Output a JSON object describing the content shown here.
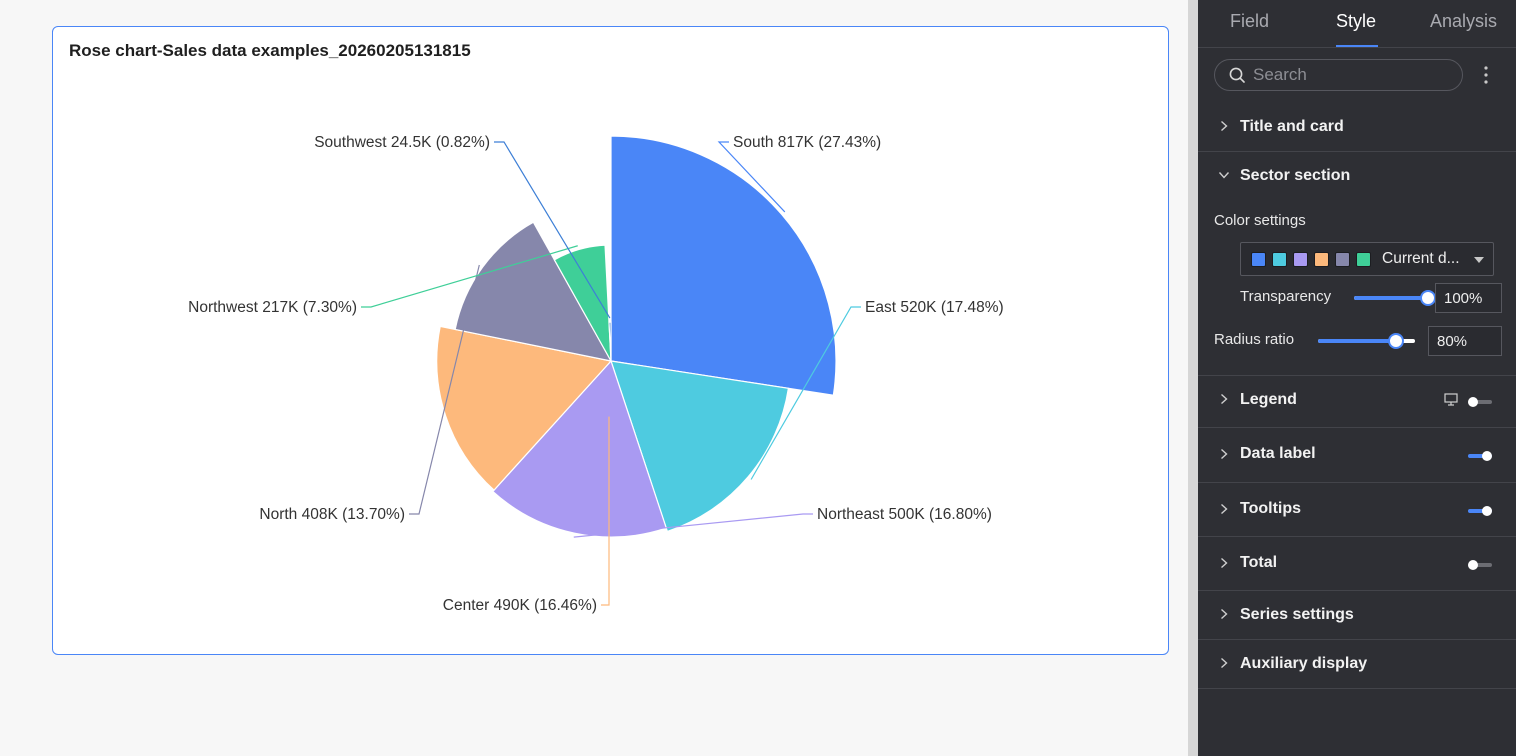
{
  "canvas": {
    "card_title": "Rose chart-Sales data examples_20260205131815"
  },
  "chart_data": {
    "type": "rose",
    "title": "Rose chart-Sales data examples_20260205131815",
    "radius_ratio_percent": 80,
    "slices": [
      {
        "name": "South",
        "value_label": "817K",
        "percent_label": "27.43%",
        "value": 817000,
        "percent": 27.43,
        "color": "#4a86f7"
      },
      {
        "name": "East",
        "value_label": "520K",
        "percent_label": "17.48%",
        "value": 520000,
        "percent": 17.48,
        "color": "#4ecbe0"
      },
      {
        "name": "Northeast",
        "value_label": "500K",
        "percent_label": "16.80%",
        "value": 500000,
        "percent": 16.8,
        "color": "#a99af2"
      },
      {
        "name": "Center",
        "value_label": "490K",
        "percent_label": "16.46%",
        "value": 490000,
        "percent": 16.46,
        "color": "#fdb97c"
      },
      {
        "name": "North",
        "value_label": "408K",
        "percent_label": "13.70%",
        "value": 408000,
        "percent": 13.7,
        "color": "#8687ab"
      },
      {
        "name": "Northwest",
        "value_label": "217K",
        "percent_label": "7.30%",
        "value": 217000,
        "percent": 7.3,
        "color": "#3fcf98"
      },
      {
        "name": "Southwest",
        "value_label": "24.5K",
        "percent_label": "0.82%",
        "value": 24500,
        "percent": 0.82,
        "color": "#3d7fd6"
      }
    ]
  },
  "panel": {
    "tabs": [
      {
        "label": "Field"
      },
      {
        "label": "Style"
      },
      {
        "label": "Analysis"
      }
    ],
    "active_tab": "Style",
    "search": {
      "placeholder": "Search",
      "value": ""
    },
    "sections": {
      "title_and_card": "Title and card",
      "sector_section": "Sector section",
      "legend": "Legend",
      "data_label": "Data label",
      "tooltips": "Tooltips",
      "total": "Total",
      "series_settings": "Series settings",
      "auxiliary_display": "Auxiliary display"
    },
    "toggles": {
      "legend": false,
      "data_label": true,
      "tooltips": true,
      "total": false
    },
    "sector": {
      "color_settings_label": "Color settings",
      "color_scheme_value": "Current d...",
      "swatches": [
        "#4a86f7",
        "#4ecbe0",
        "#a99af2",
        "#fdb97c",
        "#8687ab",
        "#3fcf98"
      ],
      "transparency_label": "Transparency",
      "transparency_value": "100%",
      "transparency_level": 1.0,
      "radius_ratio_label": "Radius ratio",
      "radius_ratio_value": "80%",
      "radius_ratio_level": 0.8
    },
    "colors": {
      "accent": "#4a86f7",
      "panel_bg": "#2e2f34"
    }
  }
}
